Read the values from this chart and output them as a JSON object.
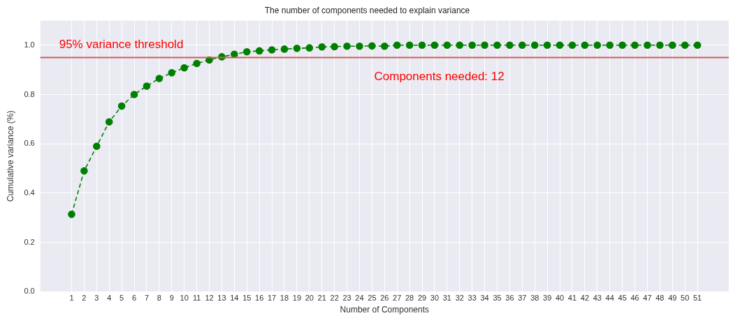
{
  "chart_data": {
    "type": "line",
    "title": "The number of components needed to explain variance",
    "xlabel": "Number of Components",
    "ylabel": "Cumulative variance (%)",
    "x": [
      1,
      2,
      3,
      4,
      5,
      6,
      7,
      8,
      9,
      10,
      11,
      12,
      13,
      14,
      15,
      16,
      17,
      18,
      19,
      20,
      21,
      22,
      23,
      24,
      25,
      26,
      27,
      28,
      29,
      30,
      31,
      32,
      33,
      34,
      35,
      36,
      37,
      38,
      39,
      40,
      41,
      42,
      43,
      44,
      45,
      46,
      47,
      48,
      49,
      50,
      51
    ],
    "series": [
      {
        "color": "#008000",
        "values": [
          0.314,
          0.49,
          0.59,
          0.689,
          0.753,
          0.8,
          0.834,
          0.865,
          0.888,
          0.908,
          0.926,
          0.94,
          0.953,
          0.963,
          0.973,
          0.977,
          0.981,
          0.984,
          0.987,
          0.989,
          0.993,
          0.994,
          0.996,
          0.996,
          0.997,
          0.996,
          1.0,
          1.0,
          1.0,
          1.0,
          1.0,
          1.0,
          1.0,
          1.0,
          1.0,
          1.0,
          1.0,
          1.0,
          1.0,
          1.0,
          1.0,
          1.0,
          1.0,
          1.0,
          1.0,
          1.0,
          1.0,
          1.0,
          1.0,
          1.0,
          1.0
        ]
      }
    ],
    "xlim": [
      -1.5,
      53.5
    ],
    "xticks": [
      1,
      2,
      3,
      4,
      5,
      6,
      7,
      8,
      9,
      10,
      11,
      12,
      13,
      14,
      15,
      16,
      17,
      18,
      19,
      20,
      21,
      22,
      23,
      24,
      25,
      26,
      27,
      28,
      29,
      30,
      31,
      32,
      33,
      34,
      35,
      36,
      37,
      38,
      39,
      40,
      41,
      42,
      43,
      44,
      45,
      46,
      47,
      48,
      49,
      50,
      51
    ],
    "ylim": [
      0,
      1.1
    ],
    "yticks": [
      {
        "value": 0,
        "label": "0.0"
      },
      0.2,
      0.4,
      0.6,
      0.8,
      {
        "value": 1,
        "label": "1.0"
      }
    ],
    "ref_lines": [
      {
        "axis": "y",
        "value": 0.95,
        "label": "95% variance threshold",
        "color": "#cd5c5c"
      }
    ],
    "annotations": [
      "Components needed: 12"
    ],
    "grid": true,
    "marker": "circle",
    "line_style": "dashed",
    "legend": false
  }
}
